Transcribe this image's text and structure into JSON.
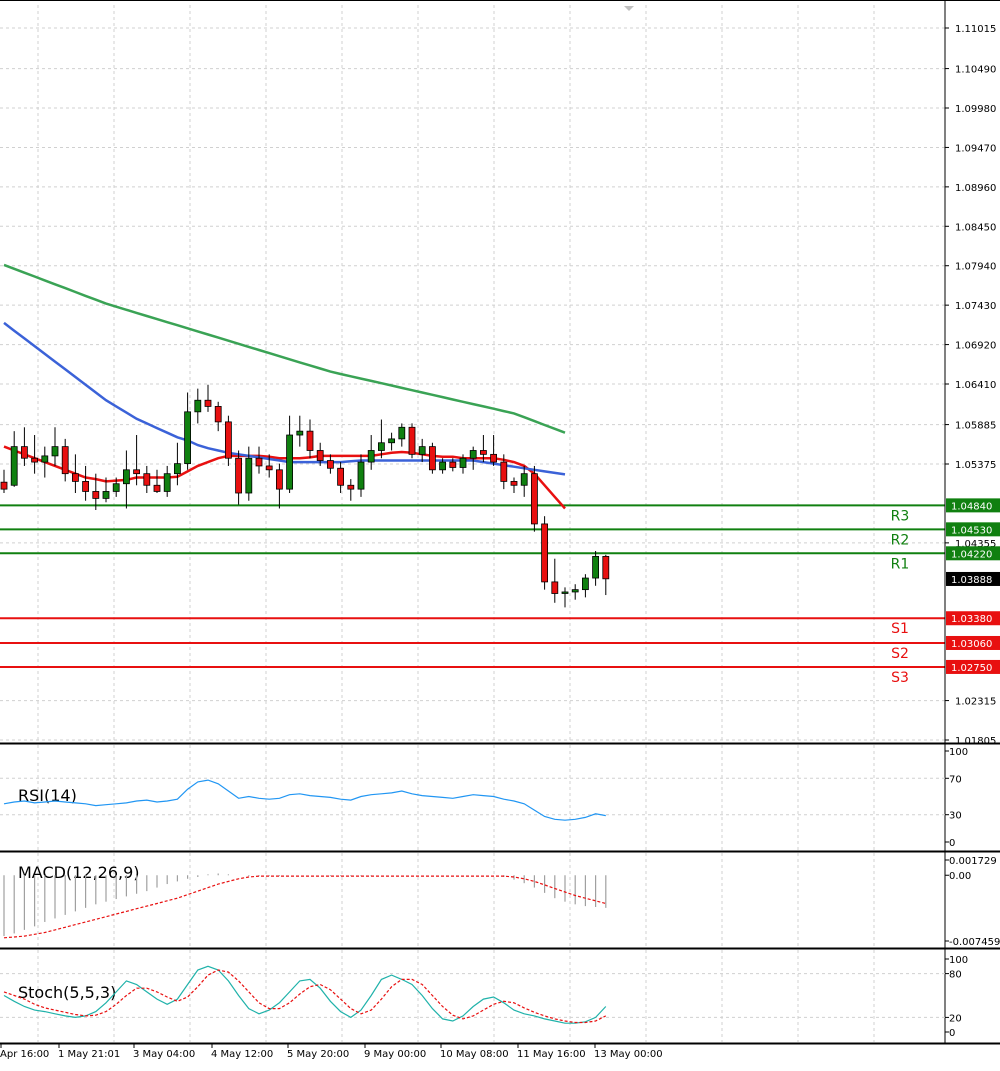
{
  "chart_data": {
    "type": "candlestick",
    "main_panel": {
      "y_ticks": [
        "1.11015",
        "1.10490",
        "1.09980",
        "1.09470",
        "1.08960",
        "1.08450",
        "1.07940",
        "1.07430",
        "1.06920",
        "1.06410",
        "1.05885",
        "1.05375",
        "1.04355",
        "1.02315",
        "1.01805"
      ],
      "ylim": [
        1.01805,
        1.11015
      ],
      "candles": [
        {
          "o": 1.0514,
          "h": 1.053,
          "l": 1.05,
          "c": 1.0505
        },
        {
          "o": 1.051,
          "h": 1.058,
          "l": 1.0508,
          "c": 1.056
        },
        {
          "o": 1.056,
          "h": 1.0585,
          "l": 1.0535,
          "c": 1.0545
        },
        {
          "o": 1.0545,
          "h": 1.0575,
          "l": 1.0525,
          "c": 1.054
        },
        {
          "o": 1.054,
          "h": 1.056,
          "l": 1.052,
          "c": 1.0548
        },
        {
          "o": 1.0548,
          "h": 1.0585,
          "l": 1.0535,
          "c": 1.056
        },
        {
          "o": 1.056,
          "h": 1.057,
          "l": 1.0515,
          "c": 1.0525
        },
        {
          "o": 1.0525,
          "h": 1.055,
          "l": 1.05,
          "c": 1.0515
        },
        {
          "o": 1.0515,
          "h": 1.0535,
          "l": 1.049,
          "c": 1.0502
        },
        {
          "o": 1.0502,
          "h": 1.0525,
          "l": 1.0478,
          "c": 1.0493
        },
        {
          "o": 1.0493,
          "h": 1.052,
          "l": 1.0488,
          "c": 1.0502
        },
        {
          "o": 1.0502,
          "h": 1.052,
          "l": 1.0495,
          "c": 1.0512
        },
        {
          "o": 1.0512,
          "h": 1.0555,
          "l": 1.048,
          "c": 1.053
        },
        {
          "o": 1.053,
          "h": 1.0575,
          "l": 1.051,
          "c": 1.0525
        },
        {
          "o": 1.0525,
          "h": 1.0535,
          "l": 1.05,
          "c": 1.051
        },
        {
          "o": 1.051,
          "h": 1.053,
          "l": 1.05,
          "c": 1.0502
        },
        {
          "o": 1.0502,
          "h": 1.0535,
          "l": 1.0495,
          "c": 1.0525
        },
        {
          "o": 1.0525,
          "h": 1.0565,
          "l": 1.051,
          "c": 1.0538
        },
        {
          "o": 1.0538,
          "h": 1.063,
          "l": 1.053,
          "c": 1.0605
        },
        {
          "o": 1.0605,
          "h": 1.0635,
          "l": 1.059,
          "c": 1.062
        },
        {
          "o": 1.062,
          "h": 1.064,
          "l": 1.0605,
          "c": 1.0612
        },
        {
          "o": 1.0612,
          "h": 1.0618,
          "l": 1.058,
          "c": 1.0592
        },
        {
          "o": 1.0592,
          "h": 1.06,
          "l": 1.0535,
          "c": 1.0545
        },
        {
          "o": 1.0545,
          "h": 1.0555,
          "l": 1.0485,
          "c": 1.05
        },
        {
          "o": 1.05,
          "h": 1.056,
          "l": 1.049,
          "c": 1.0545
        },
        {
          "o": 1.0545,
          "h": 1.056,
          "l": 1.0525,
          "c": 1.0535
        },
        {
          "o": 1.0535,
          "h": 1.055,
          "l": 1.052,
          "c": 1.053
        },
        {
          "o": 1.053,
          "h": 1.0538,
          "l": 1.048,
          "c": 1.0505
        },
        {
          "o": 1.0505,
          "h": 1.06,
          "l": 1.05,
          "c": 1.0575
        },
        {
          "o": 1.0575,
          "h": 1.06,
          "l": 1.056,
          "c": 1.058
        },
        {
          "o": 1.058,
          "h": 1.0595,
          "l": 1.0545,
          "c": 1.0555
        },
        {
          "o": 1.0555,
          "h": 1.0565,
          "l": 1.0535,
          "c": 1.0542
        },
        {
          "o": 1.0542,
          "h": 1.055,
          "l": 1.0525,
          "c": 1.0532
        },
        {
          "o": 1.0532,
          "h": 1.054,
          "l": 1.05,
          "c": 1.051
        },
        {
          "o": 1.051,
          "h": 1.0518,
          "l": 1.049,
          "c": 1.0505
        },
        {
          "o": 1.0505,
          "h": 1.055,
          "l": 1.0495,
          "c": 1.054
        },
        {
          "o": 1.054,
          "h": 1.0575,
          "l": 1.053,
          "c": 1.0555
        },
        {
          "o": 1.0555,
          "h": 1.0595,
          "l": 1.0545,
          "c": 1.0565
        },
        {
          "o": 1.0565,
          "h": 1.0578,
          "l": 1.0555,
          "c": 1.057
        },
        {
          "o": 1.057,
          "h": 1.059,
          "l": 1.056,
          "c": 1.0585
        },
        {
          "o": 1.0585,
          "h": 1.059,
          "l": 1.0545,
          "c": 1.055
        },
        {
          "o": 1.055,
          "h": 1.057,
          "l": 1.054,
          "c": 1.056
        },
        {
          "o": 1.056,
          "h": 1.0565,
          "l": 1.0525,
          "c": 1.053
        },
        {
          "o": 1.053,
          "h": 1.0545,
          "l": 1.0525,
          "c": 1.054
        },
        {
          "o": 1.054,
          "h": 1.0545,
          "l": 1.0528,
          "c": 1.0533
        },
        {
          "o": 1.0533,
          "h": 1.055,
          "l": 1.0525,
          "c": 1.0545
        },
        {
          "o": 1.0545,
          "h": 1.056,
          "l": 1.053,
          "c": 1.0555
        },
        {
          "o": 1.0555,
          "h": 1.0575,
          "l": 1.054,
          "c": 1.055
        },
        {
          "o": 1.055,
          "h": 1.0575,
          "l": 1.0535,
          "c": 1.054
        },
        {
          "o": 1.054,
          "h": 1.055,
          "l": 1.0505,
          "c": 1.0515
        },
        {
          "o": 1.0515,
          "h": 1.052,
          "l": 1.05,
          "c": 1.051
        },
        {
          "o": 1.051,
          "h": 1.0535,
          "l": 1.0495,
          "c": 1.0525
        },
        {
          "o": 1.0525,
          "h": 1.0535,
          "l": 1.045,
          "c": 1.046
        },
        {
          "o": 1.046,
          "h": 1.047,
          "l": 1.0375,
          "c": 1.0385
        },
        {
          "o": 1.0385,
          "h": 1.0415,
          "l": 1.0358,
          "c": 1.037
        },
        {
          "o": 1.037,
          "h": 1.0378,
          "l": 1.0352,
          "c": 1.0372
        },
        {
          "o": 1.0372,
          "h": 1.0382,
          "l": 1.0362,
          "c": 1.0375
        },
        {
          "o": 1.0375,
          "h": 1.0395,
          "l": 1.0365,
          "c": 1.039
        },
        {
          "o": 1.039,
          "h": 1.0425,
          "l": 1.038,
          "c": 1.0418
        },
        {
          "o": 1.0418,
          "h": 1.042,
          "l": 1.0368,
          "c": 1.0389
        }
      ],
      "ma_lines": [
        {
          "color": "#e81010",
          "values": [
            1.056,
            1.0555,
            1.055,
            1.0545,
            1.054,
            1.0535,
            1.053,
            1.0525,
            1.052,
            1.0518,
            1.0515,
            1.0516,
            1.0517,
            1.052,
            1.052,
            1.052,
            1.052,
            1.0521,
            1.0528,
            1.0535,
            1.054,
            1.0545,
            1.0548,
            1.0548,
            1.0548,
            1.0548,
            1.0547,
            1.0545,
            1.0545,
            1.0545,
            1.0546,
            1.0548,
            1.0548,
            1.0548,
            1.0548,
            1.0548,
            1.0548,
            1.055,
            1.0552,
            1.0553,
            1.0552,
            1.055,
            1.0548,
            1.0547,
            1.0547,
            1.0545,
            1.0545,
            1.0545,
            1.0545,
            1.0543,
            1.054,
            1.0535,
            1.0525,
            1.051,
            1.0495,
            1.048
          ]
        },
        {
          "color": "#3b62d8",
          "values": [
            1.072,
            1.071,
            1.07,
            1.069,
            1.068,
            1.067,
            1.066,
            1.065,
            1.064,
            1.063,
            1.062,
            1.0612,
            1.0604,
            1.0596,
            1.059,
            1.0584,
            1.0578,
            1.0572,
            1.0568,
            1.0562,
            1.0558,
            1.0555,
            1.0552,
            1.055,
            1.0548,
            1.0546,
            1.0544,
            1.0542,
            1.054,
            1.054,
            1.054,
            1.054,
            1.054,
            1.054,
            1.0541,
            1.0542,
            1.0542,
            1.0542,
            1.0542,
            1.0542,
            1.0542,
            1.0542,
            1.0542,
            1.0542,
            1.0542,
            1.0542,
            1.0542,
            1.054,
            1.0538,
            1.0536,
            1.0534,
            1.0532,
            1.053,
            1.0528,
            1.0526,
            1.0524
          ]
        },
        {
          "color": "#3aa355",
          "values": [
            1.0795,
            1.079,
            1.0785,
            1.078,
            1.0775,
            1.077,
            1.0765,
            1.076,
            1.0755,
            1.075,
            1.0745,
            1.0741,
            1.0737,
            1.0733,
            1.0729,
            1.0725,
            1.0721,
            1.0717,
            1.0713,
            1.0709,
            1.0705,
            1.0701,
            1.0697,
            1.0693,
            1.0689,
            1.0685,
            1.0681,
            1.0677,
            1.0673,
            1.0669,
            1.0665,
            1.0661,
            1.0657,
            1.0654,
            1.0651,
            1.0648,
            1.0645,
            1.0642,
            1.0639,
            1.0636,
            1.0633,
            1.063,
            1.0627,
            1.0624,
            1.0621,
            1.0618,
            1.0615,
            1.0612,
            1.0609,
            1.0606,
            1.0603,
            1.0598,
            1.0593,
            1.0588,
            1.0583,
            1.0578
          ]
        }
      ],
      "levels": [
        {
          "label": "R3",
          "value": 1.0484,
          "value_text": "1.04840",
          "color": "#108010"
        },
        {
          "label": "R2",
          "value": 1.0453,
          "value_text": "1.04530",
          "color": "#108010"
        },
        {
          "label": "R1",
          "value": 1.0422,
          "value_text": "1.04220",
          "color": "#108010"
        },
        {
          "label": "S1",
          "value": 1.0338,
          "value_text": "1.03380",
          "color": "#e81010"
        },
        {
          "label": "S2",
          "value": 1.0306,
          "value_text": "1.03060",
          "color": "#e81010"
        },
        {
          "label": "S3",
          "value": 1.0275,
          "value_text": "1.02750",
          "color": "#e81010"
        }
      ],
      "current_price": {
        "value": 1.03888,
        "text": "1.03888"
      },
      "bull_color": "#108010",
      "bear_color": "#e81010"
    },
    "rsi_panel": {
      "title": "RSI(14)",
      "y_ticks": [
        "100",
        "70",
        "30",
        "0"
      ],
      "ylim": [
        0,
        100
      ],
      "color": "#2196f3",
      "values": [
        42,
        44,
        45,
        43,
        44,
        45,
        44,
        43,
        42,
        40,
        41,
        42,
        43,
        45,
        46,
        44,
        45,
        47,
        58,
        66,
        68,
        64,
        56,
        48,
        50,
        48,
        47,
        48,
        52,
        53,
        51,
        50,
        49,
        47,
        46,
        50,
        52,
        53,
        54,
        56,
        53,
        51,
        50,
        49,
        48,
        50,
        52,
        51,
        50,
        47,
        45,
        42,
        35,
        28,
        25,
        24,
        25,
        27,
        31,
        29
      ]
    },
    "macd_panel": {
      "title": "MACD(12,26,9)",
      "y_ticks": [
        "0.001729",
        "0.00",
        "-0.007459"
      ],
      "ylim": [
        -0.007459,
        0.001729
      ],
      "hist_color": "#a0a0a0",
      "signal_color": "#e81010",
      "histogram": [
        -0.0069,
        -0.0066,
        -0.0062,
        -0.0058,
        -0.0053,
        -0.0049,
        -0.0045,
        -0.0041,
        -0.0037,
        -0.0033,
        -0.003,
        -0.0027,
        -0.0024,
        -0.0021,
        -0.0018,
        -0.0014,
        -0.001,
        -0.0007,
        -0.0004,
        -0.0002,
        0.0001,
        0.0002,
        0.0001,
        0.0,
        -0.0001,
        -0.0001,
        -0.0001,
        -0.0001,
        0.0,
        0.0,
        0.0,
        0.0,
        -0.0001,
        -0.0001,
        -0.0001,
        -0.0001,
        -0.0001,
        0.0,
        0.0,
        0.0,
        0.0,
        0.0,
        0.0,
        0.0,
        0.0,
        0.0,
        0.0,
        0.0,
        0.0,
        -0.0002,
        -0.0005,
        -0.0009,
        -0.0014,
        -0.002,
        -0.0026,
        -0.003,
        -0.0033,
        -0.0035,
        -0.0036,
        -0.0037
      ],
      "signal": [
        -0.0071,
        -0.007,
        -0.0069,
        -0.0067,
        -0.0065,
        -0.0062,
        -0.0059,
        -0.0056,
        -0.0053,
        -0.005,
        -0.0047,
        -0.0044,
        -0.0041,
        -0.0038,
        -0.0035,
        -0.0032,
        -0.0029,
        -0.0026,
        -0.0022,
        -0.0018,
        -0.0014,
        -0.001,
        -0.0007,
        -0.0004,
        -0.0002,
        -0.0001,
        -0.0001,
        -0.0001,
        -0.0001,
        -0.0001,
        -0.0001,
        -0.0001,
        -0.0001,
        -0.0001,
        -0.0001,
        -0.0001,
        -0.0001,
        -0.0001,
        -0.0001,
        -0.0001,
        -0.0001,
        -0.0001,
        -0.0001,
        -0.0001,
        -0.0001,
        -0.0001,
        -0.0001,
        -0.0001,
        -0.0001,
        -0.0001,
        -0.0002,
        -0.0004,
        -0.0007,
        -0.0011,
        -0.0015,
        -0.0019,
        -0.0023,
        -0.0026,
        -0.0029,
        -0.0032
      ]
    },
    "stoch_panel": {
      "title": "Stoch(5,5,3)",
      "y_ticks": [
        "100",
        "80",
        "20",
        "0"
      ],
      "ylim": [
        0,
        100
      ],
      "main_color": "#20b2aa",
      "signal_color": "#e81010",
      "main": [
        50,
        42,
        35,
        30,
        28,
        25,
        22,
        20,
        22,
        28,
        40,
        55,
        70,
        65,
        55,
        45,
        38,
        45,
        65,
        85,
        90,
        85,
        70,
        50,
        32,
        25,
        30,
        40,
        55,
        70,
        72,
        60,
        42,
        28,
        20,
        30,
        50,
        72,
        78,
        72,
        65,
        50,
        32,
        18,
        15,
        22,
        35,
        45,
        48,
        40,
        30,
        25,
        22,
        18,
        15,
        12,
        12,
        14,
        20,
        35
      ],
      "signal": [
        55,
        50,
        45,
        38,
        33,
        30,
        27,
        24,
        22,
        23,
        28,
        38,
        50,
        60,
        60,
        55,
        48,
        42,
        48,
        62,
        78,
        85,
        82,
        70,
        55,
        40,
        32,
        32,
        40,
        52,
        62,
        65,
        58,
        45,
        32,
        25,
        30,
        45,
        62,
        72,
        72,
        65,
        50,
        35,
        23,
        18,
        22,
        30,
        38,
        42,
        40,
        33,
        27,
        22,
        18,
        15,
        13,
        13,
        15,
        22
      ]
    },
    "x_labels": [
      "Apr 16:00",
      "1 May 21:01",
      "3 May 04:00",
      "4 May 12:00",
      "5 May 20:00",
      "9 May 00:00",
      "10 May 08:00",
      "11 May 16:00",
      "13 May 00:00"
    ]
  }
}
